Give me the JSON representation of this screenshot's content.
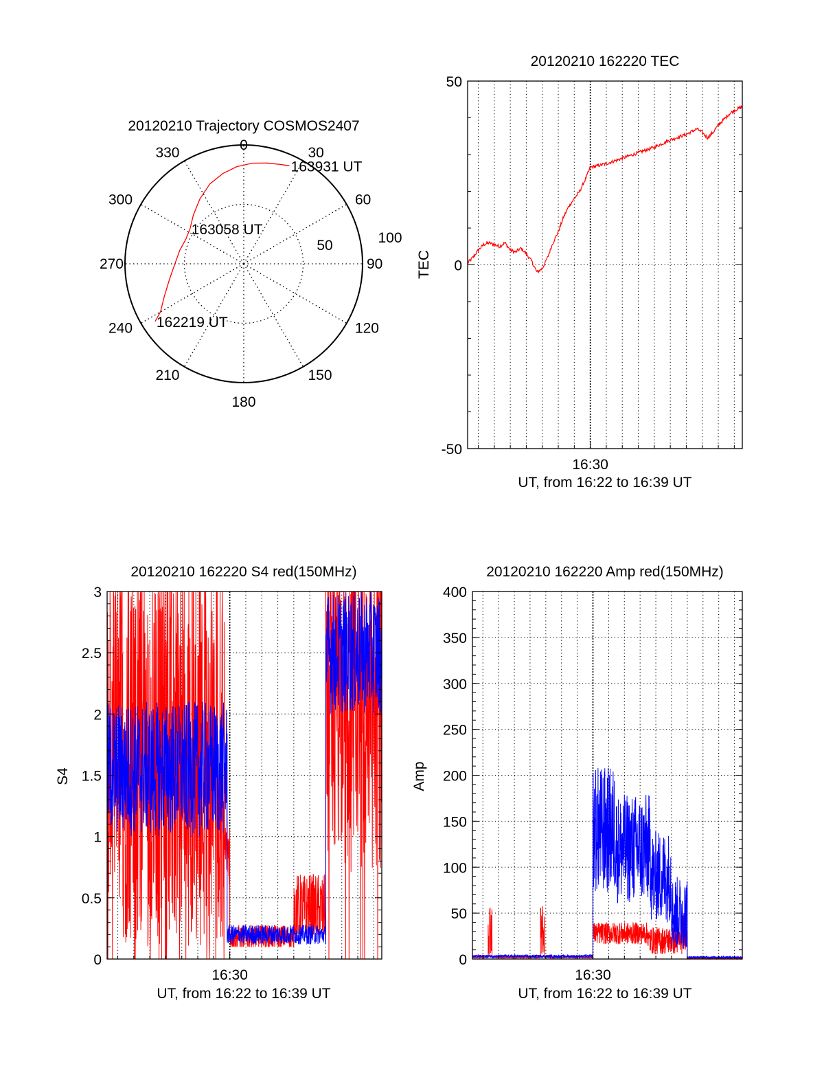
{
  "colors": {
    "red": "#ff0000",
    "blue": "#0000ff",
    "axis": "#000000",
    "grid": "#000000"
  },
  "chart_data": [
    {
      "id": "trajectory",
      "type": "polar",
      "title": "20120210 Trajectory COSMOS2407",
      "azimuth_labels": [
        "0",
        "30",
        "60",
        "90",
        "120",
        "150",
        "180",
        "210",
        "240",
        "270",
        "300",
        "330"
      ],
      "azimuth_values": [
        0,
        30,
        60,
        90,
        120,
        150,
        180,
        210,
        240,
        270,
        300,
        330
      ],
      "radial_labels": [
        "50",
        "100"
      ],
      "radial_values": [
        50,
        100
      ],
      "radial_max": 100,
      "grid": true,
      "series": [
        {
          "color": "#ff0000",
          "points_az_r": [
            [
              237,
              89
            ],
            [
              240,
              81
            ],
            [
              248,
              72
            ],
            [
              258,
              64
            ],
            [
              270,
              58
            ],
            [
              282,
              55
            ],
            [
              293,
              53
            ],
            [
              303,
              54
            ],
            [
              314,
              59
            ],
            [
              326,
              66
            ],
            [
              337,
              73
            ],
            [
              347,
              78
            ],
            [
              356,
              82
            ],
            [
              5,
              85
            ],
            [
              13,
              87
            ],
            [
              20,
              89
            ],
            [
              25,
              91
            ]
          ]
        }
      ],
      "annotations": [
        {
          "text": "163931 UT",
          "az": 25,
          "r": 91
        },
        {
          "text": "163058 UT",
          "az": 303,
          "r": 54
        },
        {
          "text": "162219 UT",
          "az": 237,
          "r": 89
        }
      ]
    },
    {
      "id": "tec",
      "type": "line",
      "title": "20120210 162220 TEC",
      "xlabel": "UT, from 16:22 to 16:39 UT",
      "ylabel": "TEC",
      "xlim": [
        "16:22:20",
        "16:39:30"
      ],
      "ylim": [
        -50,
        50
      ],
      "yticks": [
        -50,
        0,
        50
      ],
      "xticks": [
        {
          "value": "16:30",
          "label": "16:30"
        }
      ],
      "grid": true,
      "series": [
        {
          "color": "#ff0000",
          "x": [
            "16:22:20",
            "16:22:40",
            "16:23:00",
            "16:23:20",
            "16:23:40",
            "16:24:00",
            "16:24:20",
            "16:24:40",
            "16:25:00",
            "16:25:20",
            "16:25:40",
            "16:26:00",
            "16:26:20",
            "16:26:40",
            "16:27:00",
            "16:27:20",
            "16:27:40",
            "16:28:00",
            "16:28:20",
            "16:28:40",
            "16:29:00",
            "16:29:20",
            "16:29:40",
            "16:30:00",
            "16:31:00",
            "16:32:00",
            "16:33:00",
            "16:34:00",
            "16:35:00",
            "16:36:00",
            "16:36:40",
            "16:37:00",
            "16:37:20",
            "16:37:40",
            "16:38:00",
            "16:38:20",
            "16:38:40",
            "16:39:00",
            "16:39:30"
          ],
          "values": [
            0.5,
            2,
            4,
            5.5,
            6,
            5.5,
            5,
            6,
            4,
            3.5,
            4.5,
            3,
            1,
            -2,
            -1,
            2,
            6,
            9,
            13,
            16,
            18,
            20,
            23,
            26.5,
            27.5,
            29,
            30.5,
            32,
            34,
            35.5,
            37,
            36,
            34.5,
            36,
            38,
            39.5,
            41,
            42,
            43
          ]
        }
      ]
    },
    {
      "id": "s4",
      "type": "line",
      "title": "20120210 162220 S4 red(150MHz)",
      "xlabel": "UT, from 16:22 to 16:39 UT",
      "ylabel": "S4",
      "xlim": [
        "16:22:20",
        "16:39:30"
      ],
      "ylim": [
        0,
        3
      ],
      "yticks": [
        0,
        0.5,
        1,
        1.5,
        2,
        2.5,
        3
      ],
      "ytick_labels": [
        "0",
        "0.5",
        "1",
        "1.5",
        "2",
        "2.5",
        "3"
      ],
      "xticks": [
        {
          "value": "16:30",
          "label": "16:30"
        }
      ],
      "grid": true,
      "series": [
        {
          "color": "#ff0000",
          "segments": [
            {
              "x_range": [
                "16:22:20",
                "16:29:40"
              ],
              "base": 1.6,
              "amp": 1.5,
              "min": 0,
              "max": 3,
              "dropouts": true
            },
            {
              "x_range": [
                "16:29:40",
                "16:30:00"
              ],
              "base": 0.9,
              "amp": 0.3,
              "min": 0.6,
              "max": 1.3
            },
            {
              "x_range": [
                "16:30:00",
                "16:34:00"
              ],
              "base": 0.18,
              "amp": 0.1,
              "min": 0.1,
              "max": 0.3
            },
            {
              "x_range": [
                "16:34:00",
                "16:36:00"
              ],
              "base": 0.4,
              "amp": 0.3,
              "min": 0.2,
              "max": 0.85
            },
            {
              "x_range": [
                "16:36:00",
                "16:39:30"
              ],
              "base": 2.0,
              "amp": 1.3,
              "min": 0,
              "max": 3,
              "dropouts": true
            }
          ]
        },
        {
          "color": "#0000ff",
          "segments": [
            {
              "x_range": [
                "16:22:20",
                "16:29:50"
              ],
              "base": 1.55,
              "amp": 0.55,
              "min": 0.9,
              "max": 2.4
            },
            {
              "x_range": [
                "16:29:50",
                "16:36:00"
              ],
              "base": 0.2,
              "amp": 0.08,
              "min": 0.12,
              "max": 0.3
            },
            {
              "x_range": [
                "16:36:00",
                "16:39:30"
              ],
              "base": 2.5,
              "amp": 0.5,
              "min": 1.5,
              "max": 3
            }
          ]
        }
      ]
    },
    {
      "id": "amp",
      "type": "line",
      "title": "20120210 162220 Amp red(150MHz)",
      "xlabel": "UT, from 16:22 to 16:39 UT",
      "ylabel": "Amp",
      "xlim": [
        "16:22:20",
        "16:39:30"
      ],
      "ylim": [
        0,
        400
      ],
      "yticks": [
        0,
        50,
        100,
        150,
        200,
        250,
        300,
        350,
        400
      ],
      "ytick_labels": [
        "0",
        "50",
        "100",
        "150",
        "200",
        "250",
        "300",
        "350",
        "400"
      ],
      "xticks": [
        {
          "value": "16:30",
          "label": "16:30"
        }
      ],
      "grid": true,
      "series": [
        {
          "color": "#ff0000",
          "segments": [
            {
              "x_range": [
                "16:22:20",
                "16:23:20"
              ],
              "base": 2,
              "amp": 1,
              "min": 0,
              "max": 5
            },
            {
              "x_range": [
                "16:23:20",
                "16:23:35"
              ],
              "base": 35,
              "amp": 30,
              "min": 5,
              "max": 66
            },
            {
              "x_range": [
                "16:23:35",
                "16:26:40"
              ],
              "base": 2,
              "amp": 1,
              "min": 0,
              "max": 5
            },
            {
              "x_range": [
                "16:26:40",
                "16:26:55"
              ],
              "base": 30,
              "amp": 28,
              "min": 5,
              "max": 60
            },
            {
              "x_range": [
                "16:26:55",
                "16:30:00"
              ],
              "base": 2,
              "amp": 1,
              "min": 0,
              "max": 5
            },
            {
              "x_range": [
                "16:30:00",
                "16:33:30"
              ],
              "base": 28,
              "amp": 12,
              "min": 10,
              "max": 50
            },
            {
              "x_range": [
                "16:33:30",
                "16:35:40"
              ],
              "base": 20,
              "amp": 15,
              "min": 3,
              "max": 60
            },
            {
              "x_range": [
                "16:35:40",
                "16:36:00"
              ],
              "base": 30,
              "amp": 20,
              "min": 5,
              "max": 55
            },
            {
              "x_range": [
                "16:36:00",
                "16:39:30"
              ],
              "base": 1,
              "amp": 1,
              "min": 0,
              "max": 3
            }
          ]
        },
        {
          "color": "#0000ff",
          "segments": [
            {
              "x_range": [
                "16:22:20",
                "16:30:00"
              ],
              "base": 3,
              "amp": 1.5,
              "min": 0,
              "max": 6
            },
            {
              "x_range": [
                "16:30:00",
                "16:31:30"
              ],
              "base": 140,
              "amp": 70,
              "min": 30,
              "max": 268
            },
            {
              "x_range": [
                "16:31:30",
                "16:33:40"
              ],
              "base": 120,
              "amp": 60,
              "min": 30,
              "max": 215
            },
            {
              "x_range": [
                "16:33:40",
                "16:35:00"
              ],
              "base": 90,
              "amp": 50,
              "min": 10,
              "max": 195
            },
            {
              "x_range": [
                "16:35:00",
                "16:36:00"
              ],
              "base": 50,
              "amp": 40,
              "min": 5,
              "max": 110
            },
            {
              "x_range": [
                "16:36:00",
                "16:39:30"
              ],
              "base": 2,
              "amp": 1,
              "min": 0,
              "max": 5
            }
          ]
        }
      ]
    }
  ]
}
